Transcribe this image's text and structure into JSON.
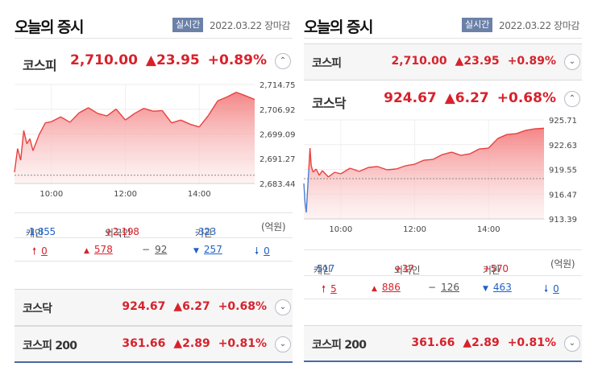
{
  "panels": [
    {
      "id": "left",
      "title": "오늘의 증시",
      "badge": "실시간",
      "date": "2022.03.22",
      "status": "장마감",
      "main_index": {
        "name": "코스피",
        "price": "2,710.00",
        "change": "▲23.95",
        "pct": "+0.89%",
        "toggle": "⌃"
      },
      "chart_data": {
        "type": "area",
        "title": "",
        "x_ticks": [
          "10:00",
          "12:00",
          "14:00"
        ],
        "y_ticks": [
          "2,714.75",
          "2,706.92",
          "2,699.09",
          "2,691.27",
          "2,683.44"
        ],
        "ylim": [
          2683.44,
          2714.75
        ],
        "prev_close": 2686.05,
        "colors": {
          "up": "#e8413e",
          "down": "#4a7fd4",
          "fill_top": "#f37f80",
          "fill_bottom": "#fde8e8"
        },
        "x": [
          "09:00",
          "09:05",
          "09:10",
          "09:15",
          "09:20",
          "09:25",
          "09:30",
          "09:40",
          "09:50",
          "10:00",
          "10:15",
          "10:30",
          "10:45",
          "11:00",
          "11:15",
          "11:30",
          "11:45",
          "12:00",
          "12:15",
          "12:30",
          "12:45",
          "13:00",
          "13:15",
          "13:30",
          "13:45",
          "14:00",
          "14:15",
          "14:30",
          "14:45",
          "15:00",
          "15:15",
          "15:30"
        ],
        "values": [
          2687.0,
          2694.5,
          2690.8,
          2700.2,
          2696.0,
          2697.6,
          2693.8,
          2698.9,
          2702.6,
          2703.0,
          2704.5,
          2702.8,
          2705.8,
          2707.4,
          2705.6,
          2704.8,
          2707.0,
          2703.5,
          2705.6,
          2707.2,
          2706.3,
          2706.5,
          2702.6,
          2703.5,
          2702.2,
          2701.3,
          2705.0,
          2709.6,
          2710.8,
          2712.3,
          2711.2,
          2710.0
        ]
      },
      "investors": {
        "retail_label": "개인",
        "retail": "-1,855",
        "foreign_label": "외국인",
        "foreign": "+2,198",
        "inst_label": "기관",
        "inst": "-323",
        "unit": "(억원)"
      },
      "breadth": {
        "upper_icon": "🠕",
        "upper": "0",
        "up_icon": "▲",
        "up": "578",
        "flat_icon": "−",
        "flat": "92",
        "down_icon": "▼",
        "down": "257",
        "lower_icon": "🠗",
        "lower": "0"
      },
      "others": [
        {
          "name": "코스닥",
          "price": "924.67",
          "change": "▲6.27",
          "pct": "+0.68%",
          "toggle": "⌄"
        },
        {
          "name": "코스피 200",
          "price": "361.66",
          "change": "▲2.89",
          "pct": "+0.81%",
          "toggle": "⌄"
        }
      ]
    },
    {
      "id": "right",
      "title": "오늘의 증시",
      "badge": "실시간",
      "date": "2022.03.22",
      "status": "장마감",
      "top_index": {
        "name": "코스피",
        "price": "2,710.00",
        "change": "▲23.95",
        "pct": "+0.89%",
        "toggle": "⌄"
      },
      "main_index": {
        "name": "코스닥",
        "price": "924.67",
        "change": "▲6.27",
        "pct": "+0.68%",
        "toggle": "⌃"
      },
      "chart_data": {
        "type": "area",
        "title": "",
        "x_ticks": [
          "10:00",
          "12:00",
          "14:00"
        ],
        "y_ticks": [
          "925.71",
          "922.63",
          "919.55",
          "916.47",
          "913.39"
        ],
        "ylim": [
          913.39,
          925.71
        ],
        "prev_close": 918.4,
        "colors": {
          "up": "#e8413e",
          "down": "#4a7fd4",
          "fill_top": "#f37f80",
          "fill_bottom": "#fde8e8",
          "down_fill": "#9bbbe8"
        },
        "x": [
          "09:00",
          "09:02",
          "09:04",
          "09:06",
          "09:08",
          "09:10",
          "09:12",
          "09:15",
          "09:20",
          "09:25",
          "09:30",
          "09:40",
          "09:50",
          "10:00",
          "10:15",
          "10:30",
          "10:45",
          "11:00",
          "11:15",
          "11:30",
          "11:45",
          "12:00",
          "12:15",
          "12:30",
          "12:45",
          "13:00",
          "13:15",
          "13:30",
          "13:45",
          "14:00",
          "14:15",
          "14:30",
          "14:45",
          "15:00",
          "15:15",
          "15:30"
        ],
        "values": [
          917.8,
          915.4,
          914.2,
          916.9,
          919.5,
          922.2,
          920.0,
          919.2,
          919.6,
          918.8,
          919.4,
          918.6,
          919.2,
          919.0,
          919.7,
          919.3,
          919.8,
          919.9,
          919.5,
          919.6,
          920.0,
          920.2,
          920.7,
          920.8,
          921.4,
          921.7,
          921.3,
          921.5,
          922.1,
          922.2,
          923.4,
          923.9,
          924.0,
          924.4,
          924.6,
          924.67
        ]
      },
      "investors": {
        "retail_label": "개인",
        "retail": "-517",
        "foreign_label": "외국인",
        "foreign": "+37",
        "inst_label": "기관",
        "inst": "+570",
        "unit": "(억원)"
      },
      "breadth": {
        "upper_icon": "🠕",
        "upper": "5",
        "up_icon": "▲",
        "up": "886",
        "flat_icon": "−",
        "flat": "126",
        "down_icon": "▼",
        "down": "463",
        "lower_icon": "🠗",
        "lower": "0"
      },
      "others": [
        {
          "name": "코스피 200",
          "price": "361.66",
          "change": "▲2.89",
          "pct": "+0.81%",
          "toggle": "⌄"
        }
      ]
    }
  ]
}
